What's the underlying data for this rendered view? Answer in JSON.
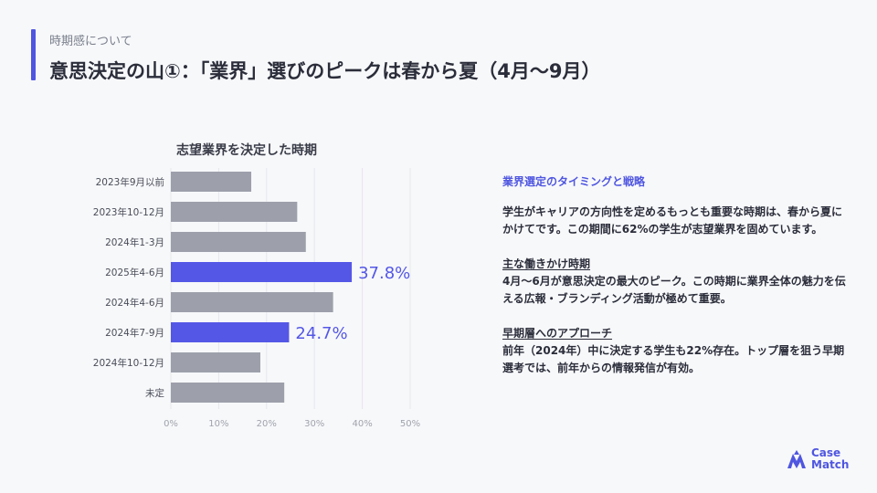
{
  "header": {
    "section_label": "時期感について",
    "title": "意思決定の山①：「業界」選びのピークは春から夏（4月〜9月）"
  },
  "chart_data": {
    "type": "bar",
    "orientation": "horizontal",
    "title": "志望業界を決定した時期",
    "categories": [
      "2023年9月以前",
      "2023年10-12月",
      "2024年1-3月",
      "2025年4-6月",
      "2024年4-6月",
      "2024年7-9月",
      "2024年10-12月",
      "未定"
    ],
    "values": [
      16.8,
      26.4,
      28.2,
      37.8,
      33.9,
      24.7,
      18.7,
      23.7
    ],
    "highlighted": [
      3,
      5
    ],
    "data_labels": {
      "3": "37.8%",
      "5": "24.7%"
    },
    "xlim": [
      0,
      50
    ],
    "x_ticks": [
      0,
      10,
      20,
      30,
      40,
      50
    ],
    "x_tick_labels": [
      "0%",
      "10%",
      "20%",
      "30%",
      "40%",
      "50%"
    ],
    "grid": true,
    "colors": {
      "default": "#9da0ab",
      "highlight": "#5457e6",
      "label": "#5457e6"
    }
  },
  "panel": {
    "heading": "業界選定のタイミングと戦略",
    "intro": "学生がキャリアの方向性を定めるもっとも重要な時期は、春から夏にかけてです。この期間に62%の学生が志望業界を固めています。",
    "sections": [
      {
        "heading": "主な働きかけ時期",
        "body": "4月〜6月が意思決定の最大のピーク。この時期に業界全体の魅力を伝える広報・ブランディング活動が極めて重要。"
      },
      {
        "heading": "早期層へのアプローチ",
        "body": "前年（2024年）中に決定する学生も22%存在。トップ層を狙う早期選考では、前年からの情報発信が有効。"
      }
    ]
  },
  "logo": {
    "line1": "Case",
    "line2": "Match"
  }
}
